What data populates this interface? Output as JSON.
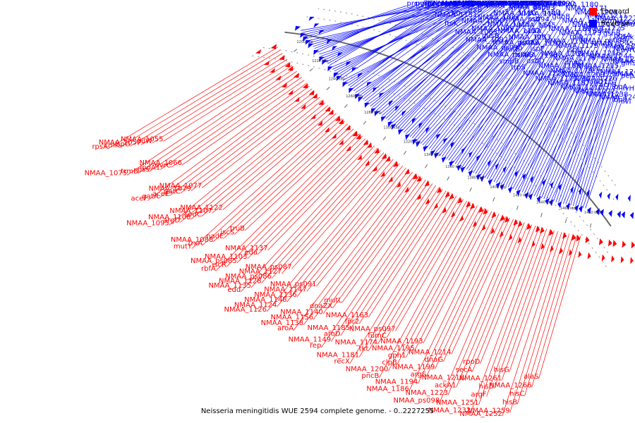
{
  "legend": {
    "forward_label": "Forward",
    "reverse_label": "Reverse",
    "forward_color": "#ff0000",
    "reverse_color": "#0000ff"
  },
  "caption": "Neisseria meningitidis WUE 2594 complete genome. - 0..2227255",
  "scale_ticks": [
    "1480 kbp",
    "1460 kbp",
    "1440 kbp",
    "1420 kbp",
    "1400 kbp",
    "1380 kbp",
    "1360 kbp",
    "1340 kbp",
    "1320 kbp",
    "1300 kbp",
    "1280 kbp",
    "1260 kbp",
    "1240 kbp",
    "1220 kbp",
    "1200 kbp"
  ],
  "genes": {
    "reverse": [
      "ilvI",
      "ilvH",
      "pepA",
      "glnS",
      "pyrG",
      "dgk",
      "NMAA_ps100",
      "lbpB",
      "lbpA",
      "NMAA_1273",
      "NMAA_ps103",
      "NMAA_1267",
      "pgsA",
      "NMAA_1256",
      "NMAA_1248",
      "acnB",
      "NMAA_1242",
      "NMAA_1249",
      "NMAA_1243",
      "gshB",
      "trmU",
      "NMAA_1238",
      "fadD1",
      "ilvC",
      "NMAA_1244",
      "NMAA_1245",
      "purN",
      "NMAA_1227",
      "NMAA_1222",
      "NMAA_1226",
      "NMAA_1215",
      "NMAA_1216",
      "NMAA_ps099",
      "NMAA_1225",
      "NMAA_1211",
      "NMAA_1210",
      "NMAA_1209",
      "dnaQ",
      "ispD",
      "rpiA",
      "NMAA_1204",
      "NMAA_1203",
      "NMAA_1187",
      "NMAA_1179",
      "NMAA_1176",
      "NMAA_1175",
      "NMAA_1173",
      "NMAA_1172",
      "NMAA_1171",
      "NMAA_1170",
      "NMAA_1168",
      "NMAA_1165",
      "NMAA_1190",
      "NMAA_1189",
      "gdhB",
      "NMAA_1180",
      "NMAA_1228",
      "dsbD",
      "ispF",
      "rph",
      "lysC",
      "gabD",
      "surE",
      "trpS",
      "NMAA_1198",
      "NMAA_1192",
      "opaA",
      "ssb",
      "dapE",
      "rfaF",
      "smpB",
      "autB",
      "NMAA_1153",
      "NMAA_1145",
      "NMAA_1144",
      "NMAA_1134",
      "NMAA_ps090",
      "NMAA_ps089",
      "NMAA_ps088",
      "NMAA_1152",
      "NMAA_ps094",
      "NMAA_ps093",
      "NMAA_1164",
      "NMAA_1162",
      "NMAA_ps095",
      "dusB",
      "NMAA_1113",
      "NMAA_1110",
      "NMAA_1097",
      "NMAA_1096",
      "NMAA_1094",
      "NMAA_1092",
      "NMAA_1089",
      "NMAA_1081",
      "NMAA_1080",
      "NMAA_1073",
      "NMAA_1072",
      "NMAA_1067",
      "NMAA_1063",
      "NMAA_1060",
      "trxB",
      "rpsF",
      "priB",
      "rpsR",
      "NMAA_1046",
      "ftsK",
      "tig",
      "clpP",
      "dinB",
      "recA",
      "purE",
      "greA",
      "NMAA_1151",
      "NMAA_1146",
      "NMAA_1133",
      "NMAA_1130",
      "NMAA_1125",
      "porA",
      "ruvC",
      "lysS",
      "NMAA_1131",
      "pepN",
      "zwf",
      "pgl",
      "glk",
      "hexR",
      "pgi1",
      "lldA",
      "clpX",
      "xseA",
      "pdxH",
      "suhB",
      "proS",
      "prc",
      "uvrB",
      "rplI",
      "nrdA",
      "nlaA"
    ],
    "forward": [
      "alaS",
      "NMAA_1266",
      "hisC",
      "hisB",
      "NMAA_1259",
      "NMAA_1252",
      "hisG",
      "NMAA_1261",
      "hisD",
      "argF",
      "NMAA_1251",
      "NMAA_1232",
      "rpoD",
      "secA",
      "NMAA_1218",
      "ackA1",
      "NMAA_1223",
      "NMAA_ps098",
      "NMAA_1214",
      "dnaG",
      "NMAA_1199",
      "argS",
      "NMAA_1194",
      "NMAA_1186",
      "NMAA_1193",
      "NMAA_1195",
      "gph1",
      "clpB",
      "NMAA_1200",
      "pncB",
      "NMAA_ps097",
      "fumC",
      "NMAA_1174",
      "tkt",
      "NMAA_1181",
      "recX",
      "NMAA_1163",
      "fpr2",
      "NMAA_1185",
      "aroD",
      "NMAA_1149",
      "rep",
      "mutL",
      "dnaZX",
      "NMAA_1140",
      "NMAA_1156",
      "NMAA_1138",
      "aroA",
      "NMAA_ps091",
      "NMAA_1147",
      "NMAA_1136",
      "NMAA_1148",
      "NMAA_1124",
      "NMAA_1126",
      "NMAA_ps087",
      "NMAA_1127",
      "NMAA_ps086",
      "NMAA_1128",
      "NMAA_1135",
      "edd",
      "NMAA_1137",
      "eda",
      "NMAA_1103",
      "NMAA_ps085",
      "iscR",
      "rbfA",
      "truB",
      "iscS",
      "nadE",
      "NMAA_1088",
      "trxA",
      "mutY",
      "NMAA_1122",
      "NMAA_1107",
      "sodC",
      "NMAA_1108",
      "argD",
      "NMAA_1095",
      "NMAA_1077",
      "NMAA_1079",
      "gatC",
      "aceE",
      "gatA",
      "aceF",
      "NMAA_1066",
      "uvrC",
      "lpdA1",
      "pss",
      "trmB",
      "NMAA_1075",
      "NMAA_1055",
      "pilW",
      "NMAA_1057",
      "ispG",
      "cmk",
      "rpsA"
    ]
  }
}
